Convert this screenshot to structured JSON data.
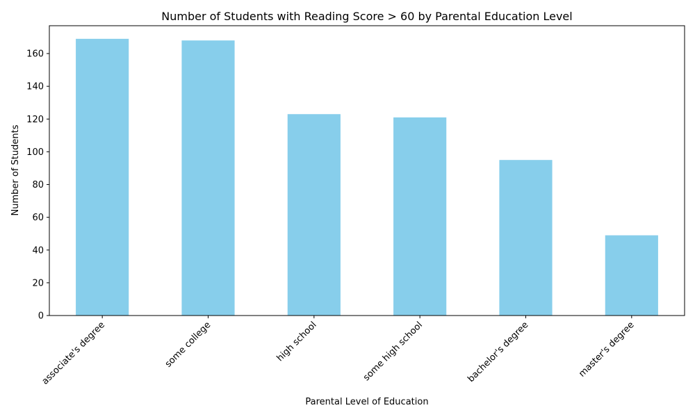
{
  "chart_data": {
    "type": "bar",
    "title": "Number of Students with Reading Score > 60 by Parental Education Level",
    "xlabel": "Parental Level of Education",
    "ylabel": "Number of Students",
    "categories": [
      "associate's degree",
      "some college",
      "high school",
      "some high school",
      "bachelor's degree",
      "master's degree"
    ],
    "values": [
      169,
      168,
      123,
      121,
      95,
      49
    ],
    "ylim": [
      0,
      177
    ],
    "yticks": [
      0,
      20,
      40,
      60,
      80,
      100,
      120,
      140,
      160
    ],
    "bar_color": "#87ceeb",
    "grid": false,
    "legend": "none"
  }
}
